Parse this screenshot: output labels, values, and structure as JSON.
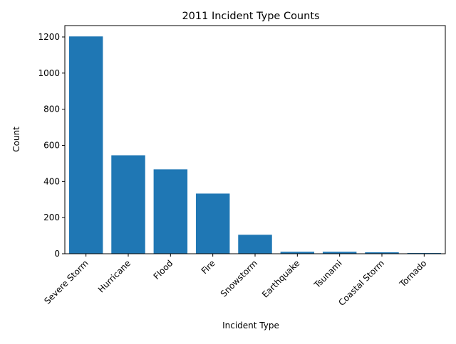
{
  "chart_data": {
    "type": "bar",
    "title": "2011 Incident Type Counts",
    "xlabel": "Incident Type",
    "ylabel": "Count",
    "categories": [
      "Severe Storm",
      "Hurricane",
      "Flood",
      "Fire",
      "Snowstorm",
      "Earthquake",
      "Tsunami",
      "Coastal Storm",
      "Tornado"
    ],
    "values": [
      1203,
      545,
      467,
      333,
      105,
      11,
      11,
      8,
      4
    ],
    "ylim": [
      0,
      1263
    ],
    "yticks": [
      0,
      200,
      400,
      600,
      800,
      1000,
      1200
    ],
    "grid": false,
    "legend": "none",
    "colors": {
      "bar": "#1f77b4",
      "axis": "#000000",
      "background": "#ffffff"
    }
  }
}
